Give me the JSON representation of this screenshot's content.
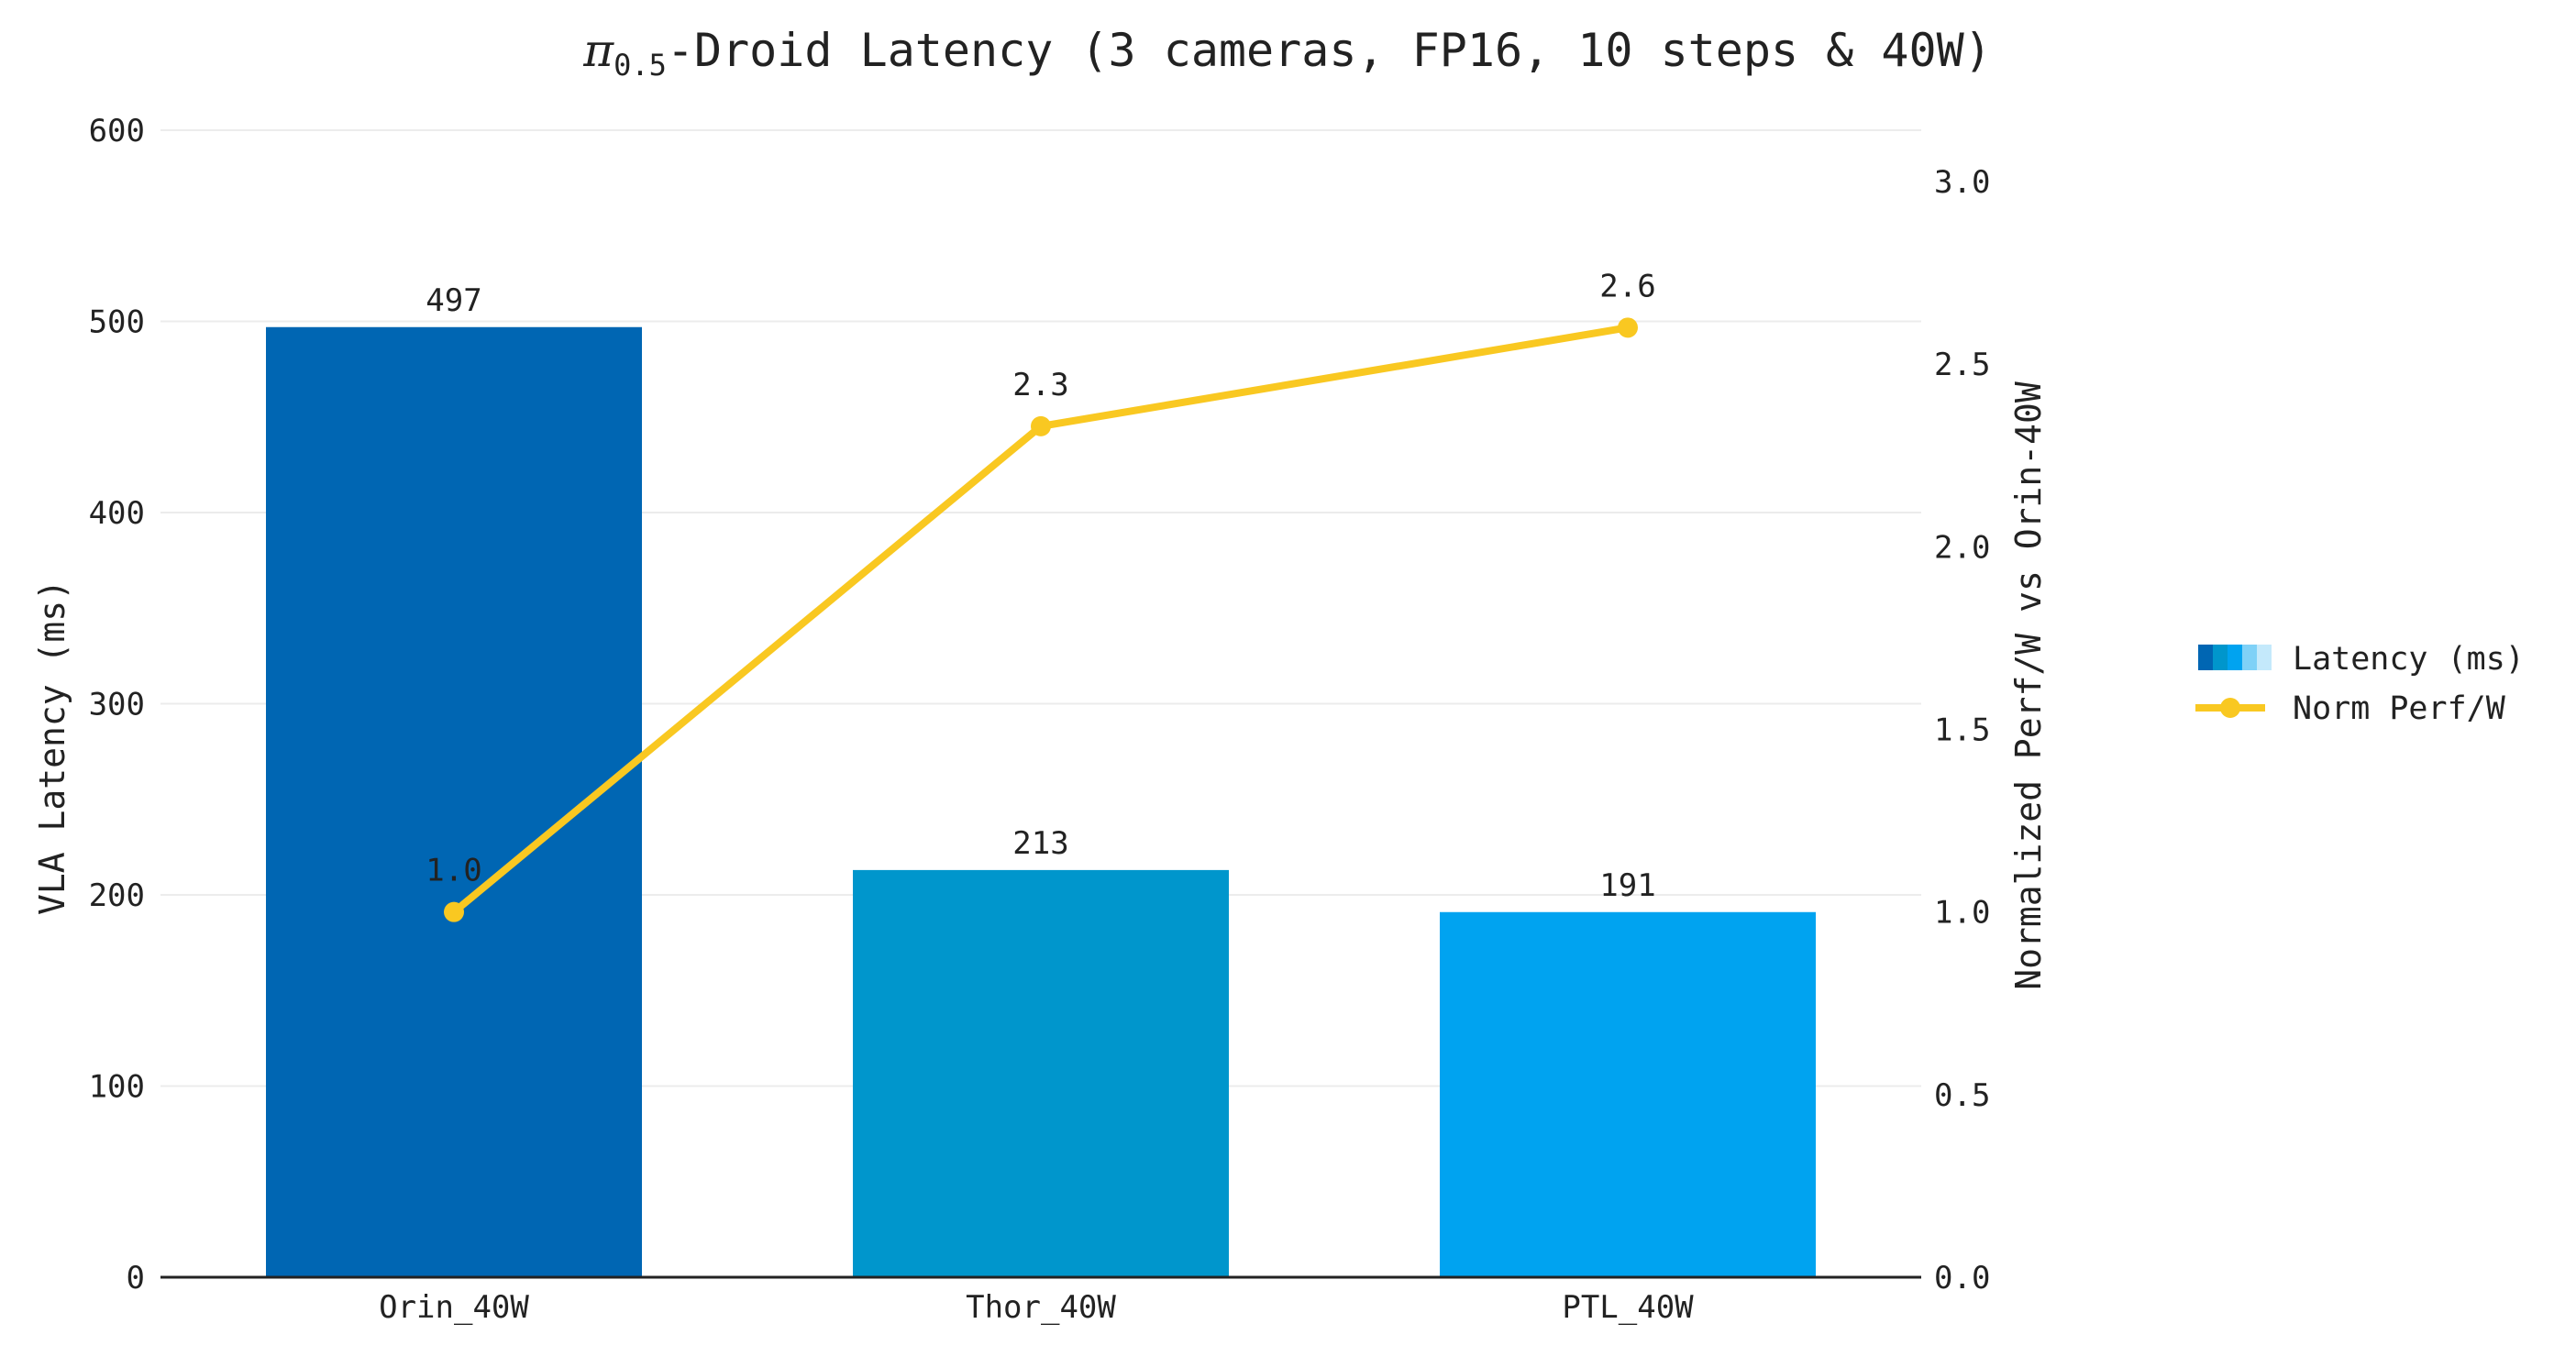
{
  "chart_data": {
    "type": "bar",
    "title_symbol": "π",
    "title_subscript": "0.5",
    "title_rest": "-Droid Latency (3 cameras, FP16, 10 steps & 40W)",
    "categories": [
      "Orin_40W",
      "Thor_40W",
      "PTL_40W"
    ],
    "series": [
      {
        "name": "Latency (ms)",
        "type": "bar",
        "axis": "left",
        "values": [
          497,
          213,
          191
        ],
        "labels": [
          "497",
          "213",
          "191"
        ],
        "colors": [
          "#0066b3",
          "#0096cc",
          "#00a3f0"
        ]
      },
      {
        "name": "Norm Perf/W",
        "type": "line",
        "axis": "right",
        "values": [
          1.0,
          2.33,
          2.6
        ],
        "labels": [
          "1.0",
          "2.3",
          "2.6"
        ],
        "color": "#f9c821"
      }
    ],
    "left_axis": {
      "label": "VLA Latency (ms)",
      "range": [
        0,
        600
      ],
      "ticks": [
        "0",
        "100",
        "200",
        "300",
        "400",
        "500",
        "600"
      ]
    },
    "right_axis": {
      "label": "Normalized Perf/W vs Orin-40W",
      "range": [
        0,
        3.0
      ],
      "ticks": [
        "0.0",
        "0.5",
        "1.0",
        "1.5",
        "2.0",
        "2.5",
        "3.0"
      ]
    },
    "grid": true,
    "legend_position": "right"
  }
}
